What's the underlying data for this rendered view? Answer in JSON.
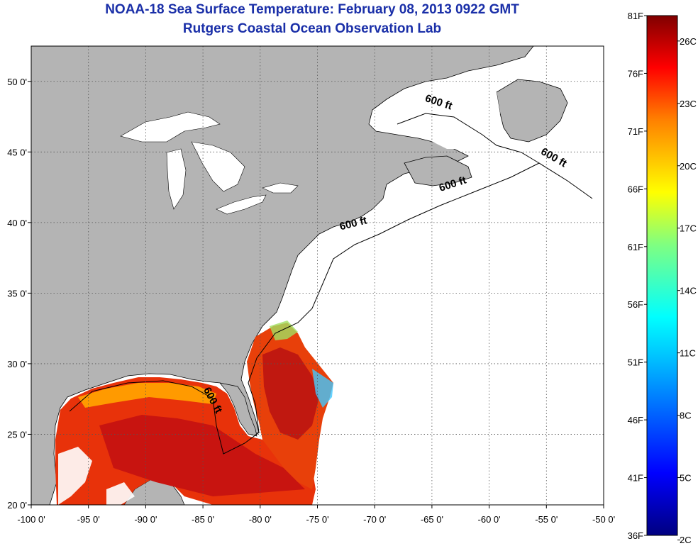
{
  "header": {
    "title": "NOAA-18 Sea Surface Temperature:  February 08, 2013 0922 GMT",
    "subtitle": "Rutgers Coastal Ocean Observation Lab"
  },
  "map": {
    "lon_range": [
      -100,
      -50
    ],
    "lat_range": [
      20,
      52.5
    ],
    "lon_ticks": [
      -100,
      -95,
      -90,
      -85,
      -80,
      -75,
      -70,
      -65,
      -60,
      -55,
      -50
    ],
    "lon_tick_labels": [
      "-100 0'",
      "-95 0'",
      "-90 0'",
      "-85 0'",
      "-80 0'",
      "-75 0'",
      "-70 0'",
      "-65 0'",
      "-60 0'",
      "-55 0'",
      "-50 0'"
    ],
    "lat_ticks": [
      20,
      25,
      30,
      35,
      40,
      45,
      50
    ],
    "lat_tick_labels": [
      "20 0'",
      "25 0'",
      "30 0'",
      "35 0'",
      "40 0'",
      "45 0'",
      "50 0'"
    ],
    "grid": "dotted",
    "land_color": "#b4b4b4",
    "no_data_color": "#ffffff",
    "contour_labels": [
      {
        "text": "600 ft",
        "lon": -64.5,
        "lat": 48.3,
        "rotate": 18
      },
      {
        "text": "600 ft",
        "lon": -54.5,
        "lat": 44.4,
        "rotate": 30
      },
      {
        "text": "600 ft",
        "lon": -63.1,
        "lat": 42.5,
        "rotate": -18
      },
      {
        "text": "600 ft",
        "lon": -71.8,
        "lat": 39.7,
        "rotate": -14
      },
      {
        "text": "600 ft",
        "lon": -84.4,
        "lat": 27.3,
        "rotate": 62
      }
    ]
  },
  "colorbar": {
    "fahrenheit_labels": [
      "81F",
      "76F",
      "71F",
      "66F",
      "61F",
      "56F",
      "51F",
      "46F",
      "41F",
      "36F"
    ],
    "celsius_labels": [
      "26C",
      "23C",
      "20C",
      "17C",
      "14C",
      "11C",
      "8C",
      "5C",
      "2C"
    ],
    "colors": [
      "#000080",
      "#0000ff",
      "#00a0ff",
      "#00ffff",
      "#80ff80",
      "#ffff00",
      "#ff8000",
      "#ff0000",
      "#800000"
    ]
  }
}
